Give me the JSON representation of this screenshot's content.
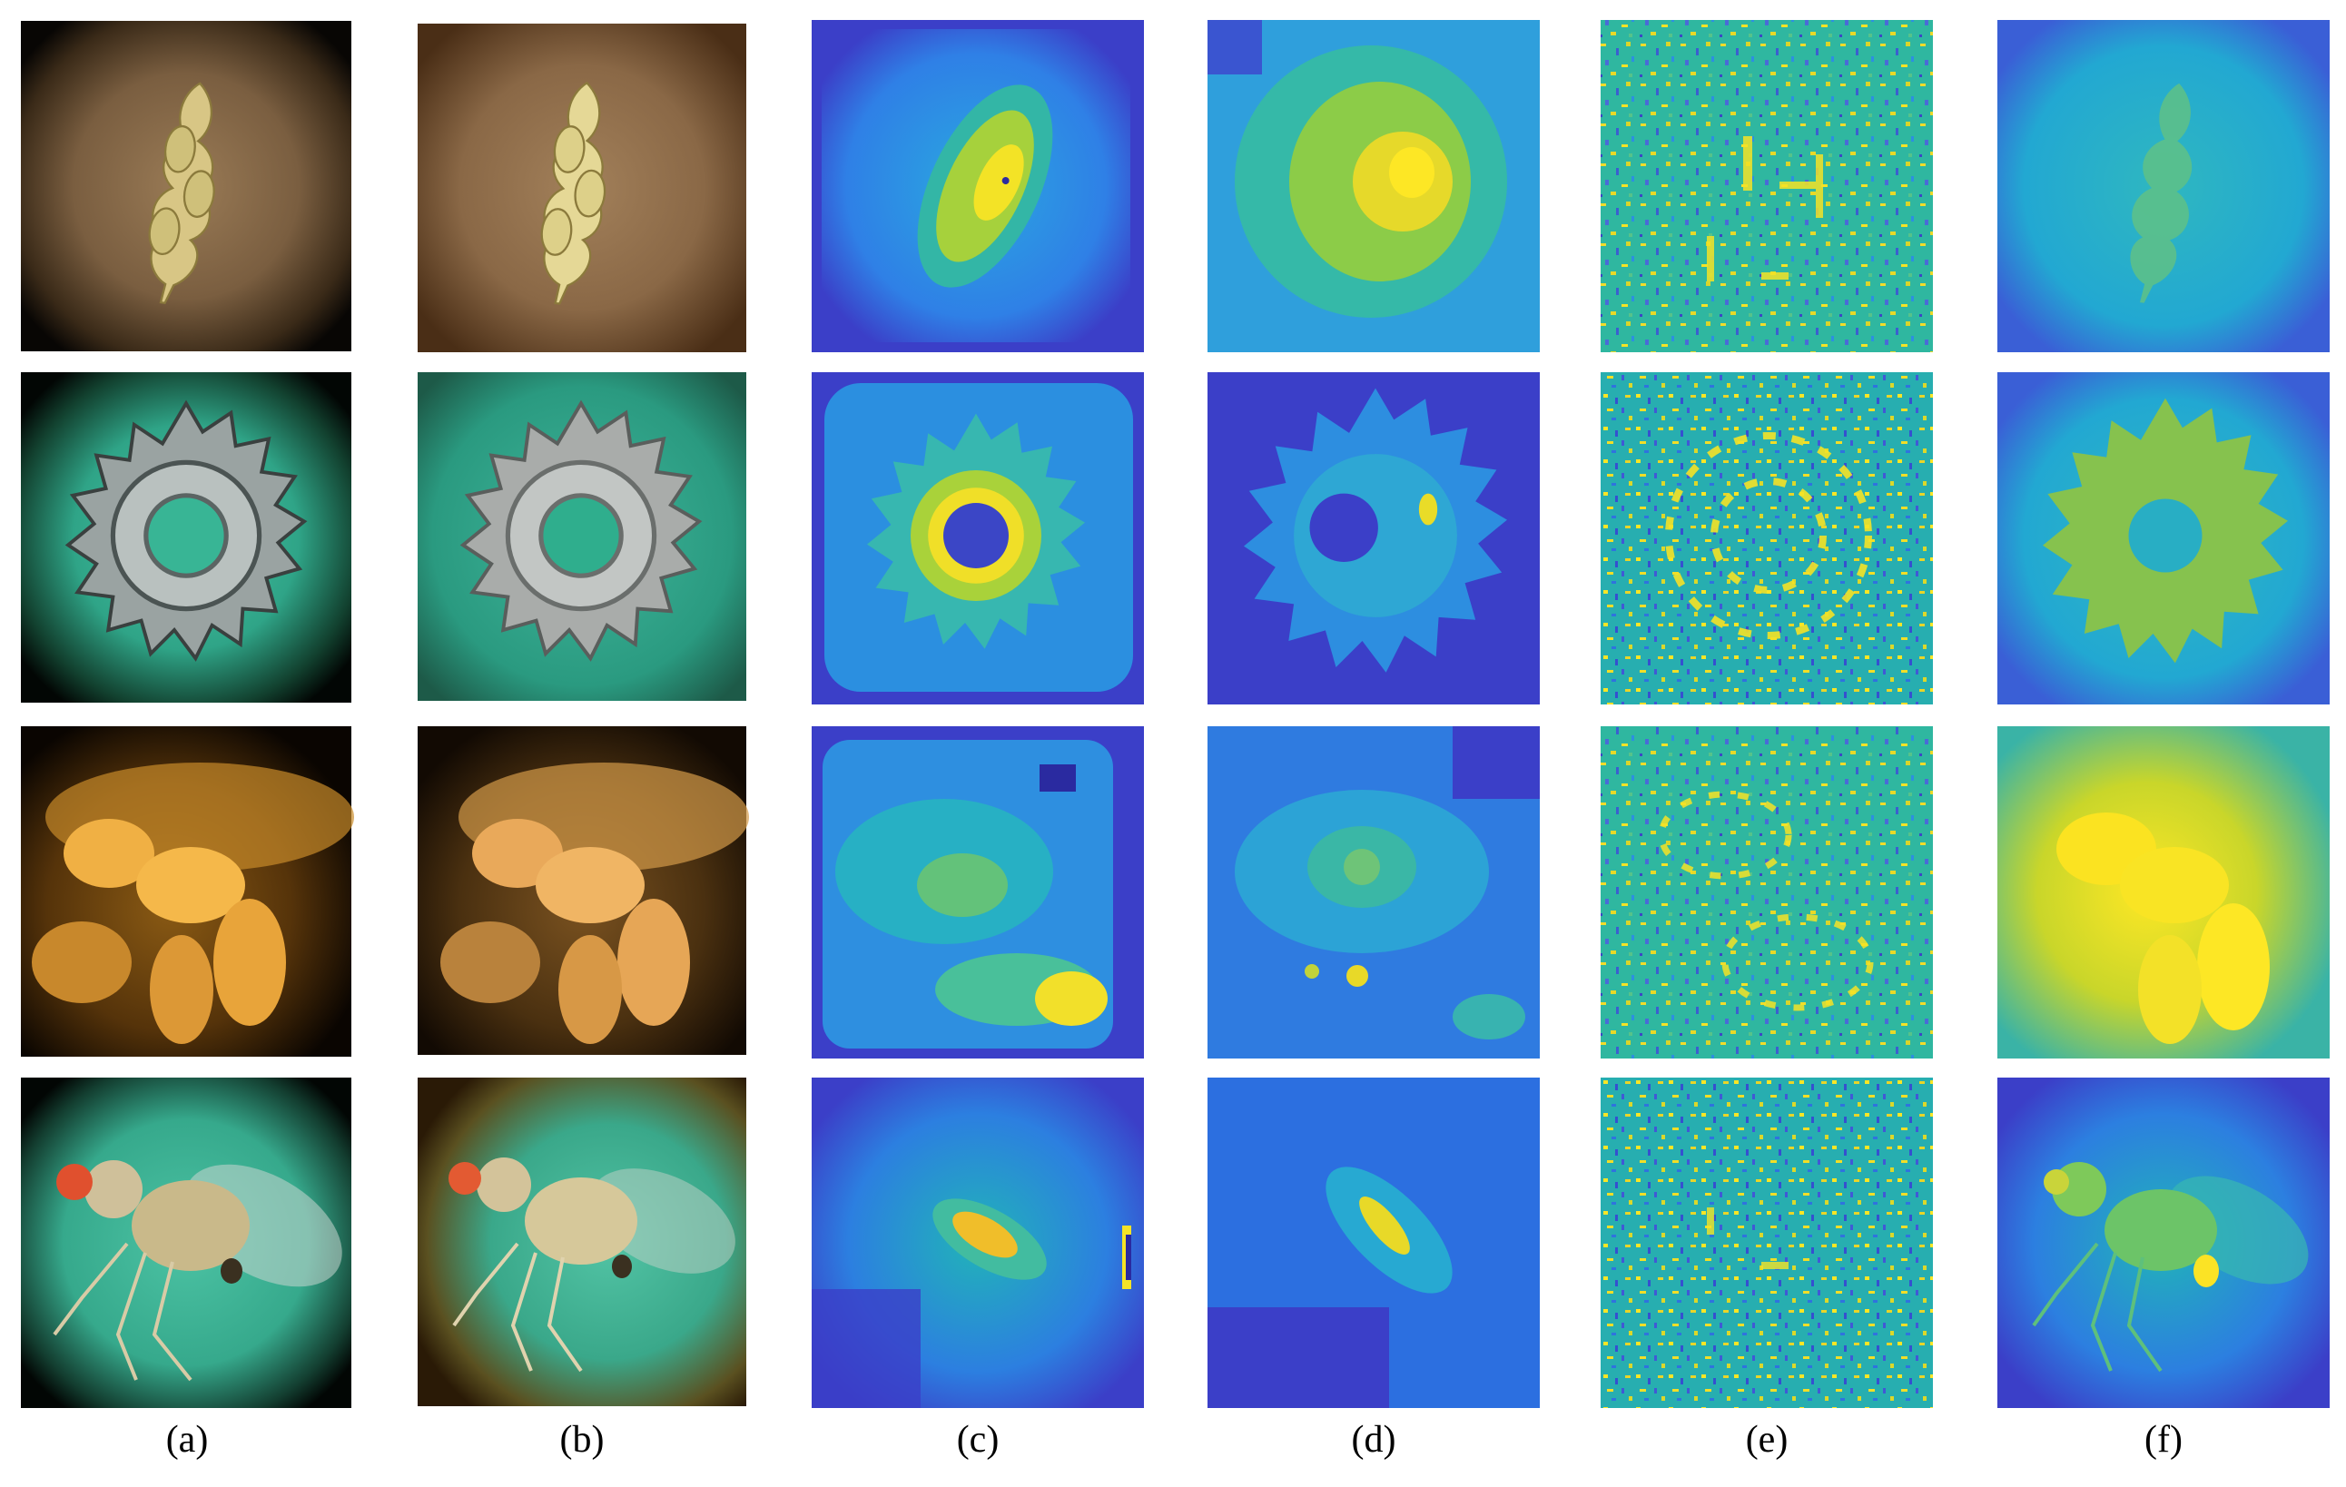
{
  "figure": {
    "column_labels": [
      "(a)",
      "(b)",
      "(c)",
      "(d)",
      "(e)",
      "(f)"
    ],
    "rows": [
      {
        "subject": "wheat-spike"
      },
      {
        "subject": "gear"
      },
      {
        "subject": "insect-closeup"
      },
      {
        "subject": "fruit-fly"
      }
    ],
    "columns": [
      {
        "kind": "photo",
        "style": "vignetted-raw"
      },
      {
        "kind": "photo",
        "style": "processed"
      },
      {
        "kind": "heatmap",
        "style": "smooth-blocky"
      },
      {
        "kind": "heatmap",
        "style": "coarse"
      },
      {
        "kind": "heatmap",
        "style": "noisy"
      },
      {
        "kind": "heatmap",
        "style": "smooth"
      }
    ],
    "colors": {
      "viridis_low": "#3b39c8",
      "viridis_mid": "#1fb3c9",
      "viridis_high": "#fbe81f",
      "wheat_bg": "#6b5238",
      "gear_bg": "#3aa98f",
      "insect_bg": "#2c1a06",
      "fly_bg": "#3fae93"
    }
  }
}
